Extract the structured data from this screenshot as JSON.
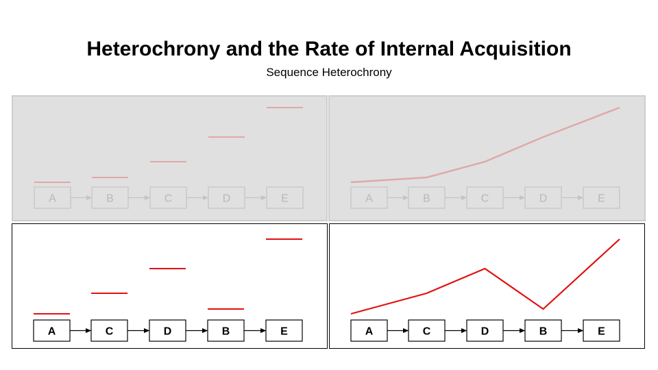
{
  "title": "Heterochrony and the Rate of Internal Acquisition",
  "subtitle": "Sequence Heterochrony",
  "colors": {
    "accent_red": "#e01010",
    "faded_red": "#e0a8a8",
    "faded_bg": "#e0e0e0",
    "faded_text": "#b8b8b8"
  },
  "panels": [
    {
      "id": "panel-tl",
      "style": "faded",
      "mode": "bars",
      "sequence": [
        "A",
        "B",
        "C",
        "D",
        "E"
      ]
    },
    {
      "id": "panel-tr",
      "style": "faded",
      "mode": "line",
      "sequence": [
        "A",
        "B",
        "C",
        "D",
        "E"
      ]
    },
    {
      "id": "panel-bl",
      "style": "active",
      "mode": "bars",
      "sequence": [
        "A",
        "C",
        "D",
        "B",
        "E"
      ]
    },
    {
      "id": "panel-br",
      "style": "active",
      "mode": "line",
      "sequence": [
        "A",
        "C",
        "D",
        "B",
        "E"
      ]
    }
  ]
}
